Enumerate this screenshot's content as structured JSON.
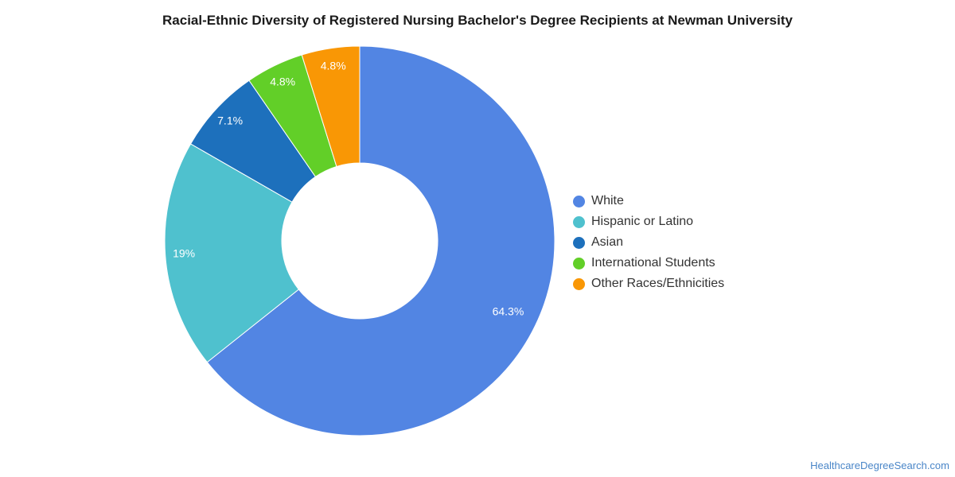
{
  "chart_data": {
    "type": "pie",
    "donut": true,
    "title": "Racial-Ethnic Diversity of Registered Nursing Bachelor's Degree Recipients at Newman University",
    "slices": [
      {
        "name": "White",
        "value": 64.3,
        "label": "64.3%",
        "color": "#5285e3"
      },
      {
        "name": "Hispanic or Latino",
        "value": 19.0,
        "label": "19%",
        "color": "#4fc1ce"
      },
      {
        "name": "Asian",
        "value": 7.1,
        "label": "7.1%",
        "color": "#1d70bc"
      },
      {
        "name": "International Students",
        "value": 4.8,
        "label": "4.8%",
        "color": "#62cf28"
      },
      {
        "name": "Other Races/Ethnicities",
        "value": 4.8,
        "label": "4.8%",
        "color": "#f99705"
      }
    ],
    "legend_position": "right"
  },
  "footer": {
    "source": "HealthcareDegreeSearch.com"
  }
}
